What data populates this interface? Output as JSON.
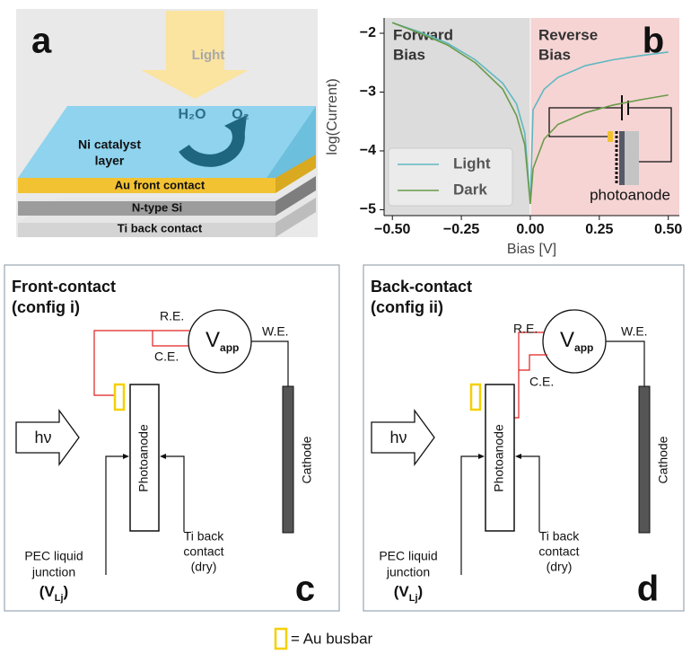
{
  "panel_a": {
    "letter": "a",
    "light": "Light",
    "h2o": "H₂O",
    "o2": "O₂",
    "layers": {
      "ni": [
        "Ni catalyst",
        "layer"
      ],
      "au": "Au front contact",
      "si": "N-type Si",
      "ti": "Ti back contact"
    }
  },
  "chart_data": {
    "type": "line",
    "xlabel": "Bias [V]",
    "ylabel": "log(Current)",
    "annotations": {
      "panel": "b",
      "forward": [
        "Forward",
        "Bias"
      ],
      "reverse": [
        "Reverse",
        "Bias"
      ],
      "inset": "photoanode"
    },
    "x": [
      -0.5,
      -0.4,
      -0.3,
      -0.2,
      -0.1,
      -0.05,
      -0.02,
      0,
      0.01,
      0.05,
      0.1,
      0.2,
      0.3,
      0.4,
      0.5
    ],
    "series": [
      {
        "name": "Light",
        "color": "#5fb8c2",
        "values": [
          -1.82,
          -1.98,
          -2.17,
          -2.45,
          -2.85,
          -3.2,
          -3.7,
          -4.9,
          -3.3,
          -2.95,
          -2.75,
          -2.55,
          -2.45,
          -2.38,
          -2.32
        ]
      },
      {
        "name": "Dark",
        "color": "#6a9a4a",
        "values": [
          -1.82,
          -2.0,
          -2.2,
          -2.5,
          -2.95,
          -3.4,
          -3.9,
          -4.9,
          -4.3,
          -3.8,
          -3.55,
          -3.35,
          -3.22,
          -3.13,
          -3.05
        ]
      }
    ],
    "xlim": [
      -0.53,
      0.54
    ],
    "ylim": [
      -5.1,
      -1.74
    ],
    "xticks": [
      {
        "value": -0.5,
        "label": "−0.50"
      },
      {
        "value": -0.25,
        "label": "−0.25"
      },
      {
        "value": 0,
        "label": "0.00"
      },
      {
        "value": 0.25,
        "label": "0.25"
      },
      {
        "value": 0.5,
        "label": "0.50"
      }
    ],
    "yticks": [
      {
        "value": -2,
        "label": "−2"
      },
      {
        "value": -3,
        "label": "−3"
      },
      {
        "value": -4,
        "label": "−4"
      },
      {
        "value": -5,
        "label": "−5"
      }
    ],
    "legend": "lower left"
  },
  "panel_c": {
    "title": [
      "Front-contact",
      "(config i)"
    ],
    "re": "R.E.",
    "ce": "C.E.",
    "we": "W.E.",
    "v": "V",
    "v_sub": "app",
    "hv": "hν",
    "photoanode": "Photoanode",
    "cathode": "Cathode",
    "junction": [
      "PEC liquid",
      "junction"
    ],
    "vlj": [
      "(V",
      "Lj",
      ")"
    ],
    "back": [
      "Ti back",
      "contact",
      "(dry)"
    ],
    "letter": "c"
  },
  "panel_d": {
    "title": [
      "Back-contact",
      "(config ii)"
    ],
    "re": "R.E.",
    "ce": "C.E.",
    "we": "W.E.",
    "v": "V",
    "v_sub": "app",
    "hv": "hν",
    "photoanode": "Photoanode",
    "cathode": "Cathode",
    "junction": [
      "PEC liquid",
      "junction"
    ],
    "vlj": [
      "(V",
      "Lj",
      ")"
    ],
    "back": [
      "Ti back",
      "contact",
      "(dry)"
    ],
    "letter": "d"
  },
  "legend": {
    "label": "= Au busbar"
  }
}
